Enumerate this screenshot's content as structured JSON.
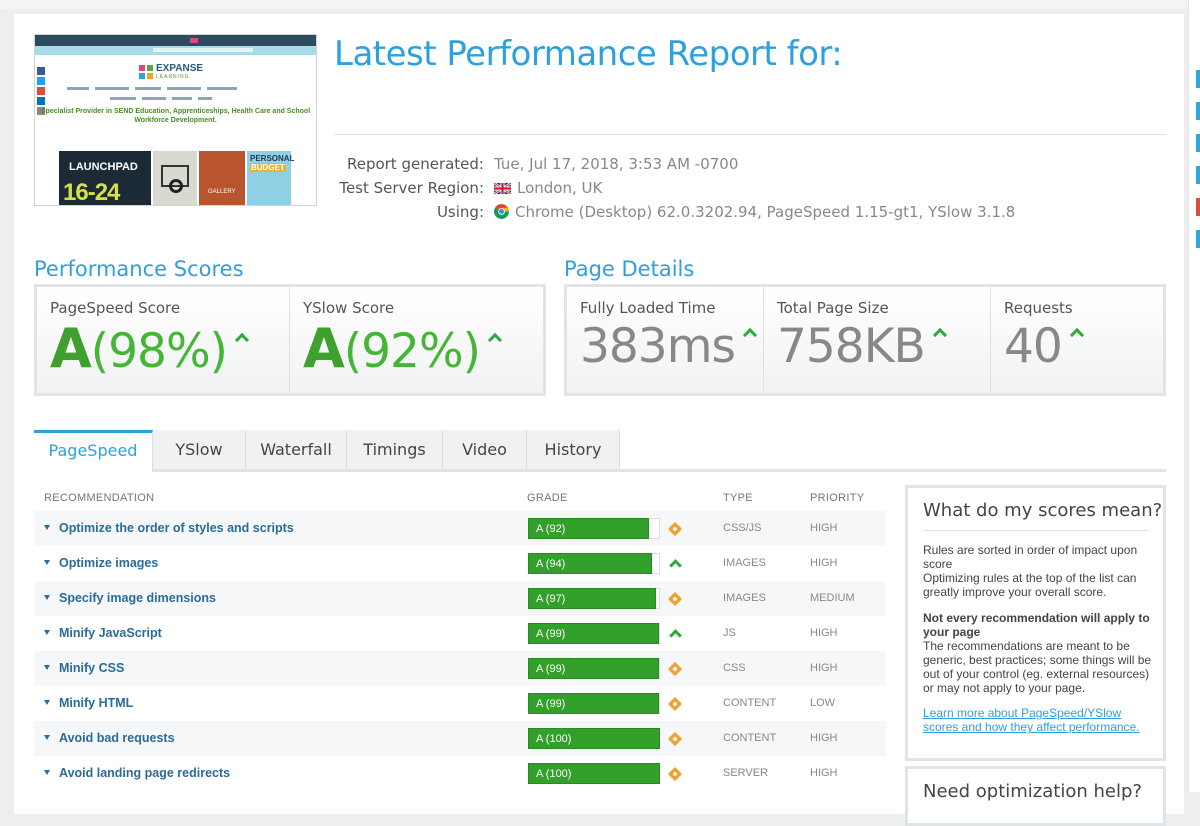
{
  "report": {
    "title": "Latest Performance Report for:",
    "meta": [
      {
        "label": "Report generated:",
        "value": "Tue, Jul 17, 2018, 3:53 AM -0700",
        "icon": ""
      },
      {
        "label": "Test Server Region:",
        "value": "London, UK",
        "icon": "uk-flag-icon"
      },
      {
        "label": "Using:",
        "value": "Chrome (Desktop) 62.0.3202.94, PageSpeed 1.15-gt1, YSlow 3.1.8",
        "icon": "chrome-icon"
      }
    ]
  },
  "thumbnail": {
    "logo": "EXPANSE",
    "logo_sub": "LEARNING",
    "tagline": "Specialist Provider in SEND Education, Apprenticeships, Health Care and School Workforce Development.",
    "tile1": "LAUNCHPAD",
    "tile1_num": "16-24",
    "tile3": "GALLERY",
    "tile4_line1": "PERSONAL",
    "tile4_line2": "BUDGET"
  },
  "scores": {
    "heading": "Performance Scores",
    "pagespeed": {
      "label": "PageSpeed Score",
      "grade": "A",
      "pct": "(98%)"
    },
    "yslow": {
      "label": "YSlow Score",
      "grade": "A",
      "pct": "(92%)"
    }
  },
  "details": {
    "heading": "Page Details",
    "loaded": {
      "label": "Fully Loaded Time",
      "value": "383ms"
    },
    "size": {
      "label": "Total Page Size",
      "value": "758KB"
    },
    "requests": {
      "label": "Requests",
      "value": "40"
    }
  },
  "tabs": [
    "PageSpeed",
    "YSlow",
    "Waterfall",
    "Timings",
    "Video",
    "History"
  ],
  "table": {
    "headers": {
      "recommendation": "RECOMMENDATION",
      "grade": "GRADE",
      "type": "TYPE",
      "priority": "PRIORITY"
    },
    "rows": [
      {
        "name": "Optimize the order of styles and scripts",
        "grade": "A (92)",
        "score": 92,
        "indicator": "diamond",
        "type": "CSS/JS",
        "priority": "HIGH"
      },
      {
        "name": "Optimize images",
        "grade": "A (94)",
        "score": 94,
        "indicator": "arrow",
        "type": "IMAGES",
        "priority": "HIGH"
      },
      {
        "name": "Specify image dimensions",
        "grade": "A (97)",
        "score": 97,
        "indicator": "diamond",
        "type": "IMAGES",
        "priority": "MEDIUM"
      },
      {
        "name": "Minify JavaScript",
        "grade": "A (99)",
        "score": 99,
        "indicator": "arrow",
        "type": "JS",
        "priority": "HIGH"
      },
      {
        "name": "Minify CSS",
        "grade": "A (99)",
        "score": 99,
        "indicator": "diamond",
        "type": "CSS",
        "priority": "HIGH"
      },
      {
        "name": "Minify HTML",
        "grade": "A (99)",
        "score": 99,
        "indicator": "diamond",
        "type": "CONTENT",
        "priority": "LOW"
      },
      {
        "name": "Avoid bad requests",
        "grade": "A (100)",
        "score": 100,
        "indicator": "diamond",
        "type": "CONTENT",
        "priority": "HIGH"
      },
      {
        "name": "Avoid landing page redirects",
        "grade": "A (100)",
        "score": 100,
        "indicator": "diamond",
        "type": "SERVER",
        "priority": "HIGH"
      }
    ]
  },
  "sidebar": {
    "title": "What do my scores mean?",
    "p1_bold": "Rules are sorted in order of impact upon score",
    "p1_text": "Optimizing rules at the top of the list can greatly improve your overall score.",
    "p2_bold": "Not every recommendation will apply to your page",
    "p2_text": "The recommendations are meant to be generic, best practices; some things will be out of your control (eg. external resources) or may not apply to your page.",
    "link": "Learn more about PageSpeed/YSlow scores and how they affect performance.",
    "title2": "Need optimization help?"
  }
}
